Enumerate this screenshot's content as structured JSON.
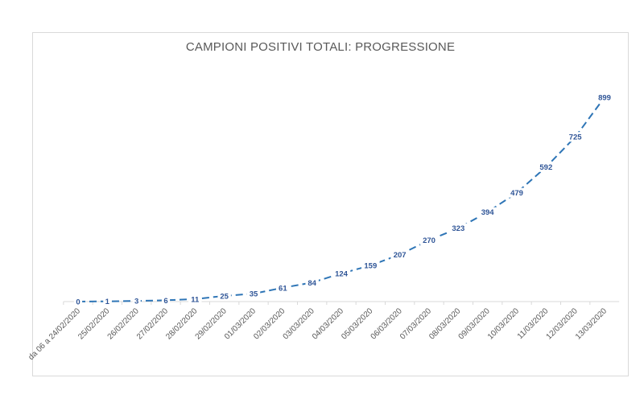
{
  "chart_data": {
    "type": "line",
    "title": "CAMPIONI POSITIVI TOTALI: PROGRESSIONE",
    "xlabel": "",
    "ylabel": "",
    "categories": [
      "da 06 a 24/02/2020",
      "25/02/2020",
      "26/02/2020",
      "27/02/2020",
      "28/02/2020",
      "29/02/2020",
      "01/03/2020",
      "02/03/2020",
      "03/03/2020",
      "04/03/2020",
      "05/03/2020",
      "06/03/2020",
      "07/03/2020",
      "08/03/2020",
      "09/03/2020",
      "10/03/2020",
      "11/03/2020",
      "12/03/2020",
      "13/03/2020"
    ],
    "series": [
      {
        "values": [
          0,
          1,
          3,
          6,
          11,
          25,
          35,
          61,
          84,
          124,
          159,
          207,
          270,
          323,
          394,
          479,
          592,
          725,
          899
        ]
      }
    ],
    "ylim": [
      0,
      899
    ],
    "grid": false,
    "legend": "none",
    "line_style": "dashed",
    "line_color": "#2e75b6",
    "label_color": "#2f5597",
    "axis_color": "#d9d9d9"
  }
}
